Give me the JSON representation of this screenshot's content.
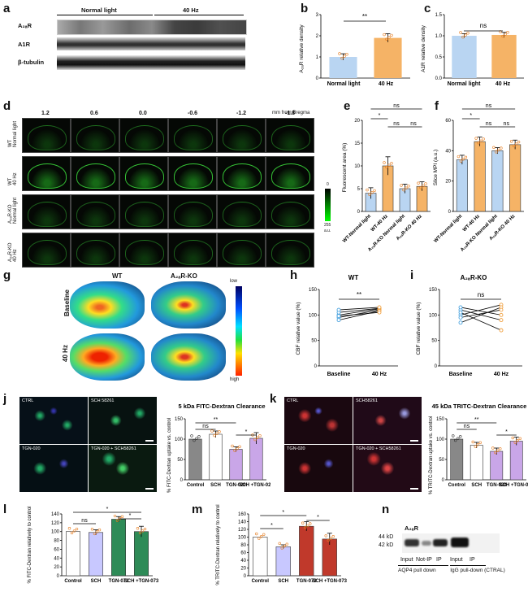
{
  "panels": {
    "a": "a",
    "b": "b",
    "c": "c",
    "d": "d",
    "e": "e",
    "f": "f",
    "g": "g",
    "h": "h",
    "i": "i",
    "j": "j",
    "k": "k",
    "l": "l",
    "m": "m",
    "n": "n"
  },
  "a": {
    "group_left": "Normal light",
    "group_right": "40 Hz",
    "rows": [
      "A₂ₐR",
      "A1R",
      "β-tubulin"
    ]
  },
  "b": {
    "ylabel": "A₂ₐR relative density",
    "sig": "**",
    "categories": [
      "Normal light",
      "40 Hz"
    ],
    "yticks": [
      "0",
      "1",
      "2",
      "3"
    ]
  },
  "c": {
    "ylabel": "A1R relative density",
    "sig": "ns",
    "categories": [
      "Normal light",
      "40 Hz"
    ],
    "yticks": [
      "0.0",
      "0.5",
      "1.0",
      "1.5"
    ]
  },
  "d": {
    "unit": "mm from Bregma",
    "columns": [
      "1.2",
      "0.6",
      "0.0",
      "-0.6",
      "-1.2",
      "-1.8"
    ],
    "rows": [
      "WT\nNormal light",
      "WT\n40 Hz",
      "A₂ₐR-KO\nNormal light",
      "A₂ₐR-KO\n40 Hz"
    ],
    "scale_top": "0",
    "scale_bottom": "255",
    "scale_unit": "a.u."
  },
  "e": {
    "ylabel": "Fluorescent area (%)",
    "yticks": [
      "0",
      "5",
      "10",
      "15",
      "20"
    ],
    "categories": [
      "WT-Normal light",
      "WT-40 Hz",
      "A₂ₐR-KO Normal light",
      "A₂ₐR-KO 40 Hz"
    ],
    "sig": [
      "ns",
      "*",
      "ns",
      "ns"
    ]
  },
  "f": {
    "ylabel": "Slice MPI (a.u.)",
    "yticks": [
      "0",
      "20",
      "40",
      "60"
    ],
    "categories": [
      "WT-Normal light",
      "WT-40 Hz",
      "A₂ₐR-KO Normal light",
      "A₂ₐR-KO 40 Hz"
    ],
    "sig": [
      "ns",
      "*",
      "ns",
      "ns"
    ]
  },
  "g": {
    "col_left": "WT",
    "col_right": "A₂ₐR-KO",
    "row_top": "Baseline",
    "row_bottom": "40 Hz",
    "scale_top": "low",
    "scale_bottom": "high"
  },
  "h": {
    "title": "WT",
    "ylabel": "CBF relative value (%)",
    "yticks": [
      "0",
      "50",
      "100",
      "150"
    ],
    "xticks": [
      "Baseline",
      "40 Hz"
    ],
    "sig": "**"
  },
  "i": {
    "title": "A₂ₐR-KO",
    "ylabel": "CBF relative value (%)",
    "yticks": [
      "0",
      "50",
      "100",
      "150"
    ],
    "xticks": [
      "Baseline",
      "40 Hz"
    ],
    "sig": "ns"
  },
  "j": {
    "image_labels": [
      "CTRL",
      "SCH 58261",
      "TGN-020",
      "TGN-020 + SCH58261"
    ],
    "title": "5 kDa FITC-Dextran Clearance",
    "ylabel": "% FITC-Dextran uptake vs. control",
    "yticks": [
      "0",
      "50",
      "100",
      "150"
    ],
    "categories": [
      "Control",
      "SCH",
      "TGN-020",
      "SCH +TGN-020"
    ],
    "sig": [
      "ns",
      "**",
      "*"
    ]
  },
  "k": {
    "image_labels": [
      "CTRL",
      "SCH58261",
      "TGN-020",
      "TGN-020 + SCH58261"
    ],
    "title": "45 kDa TRITC-Dextran Clearance",
    "ylabel": "% TRITC-Dextran uptake vs. control",
    "yticks": [
      "0",
      "50",
      "100",
      "150"
    ],
    "categories": [
      "Control",
      "SCH",
      "TGN-020",
      "SCH +TGN-020"
    ],
    "sig": [
      "ns",
      "**",
      "*"
    ]
  },
  "l": {
    "ylabel": "% FITC-Dextran relatively to control",
    "yticks": [
      "0",
      "20",
      "40",
      "60",
      "80",
      "100",
      "120",
      "140"
    ],
    "categories": [
      "Control",
      "SCH",
      "TGN-073",
      "SCH +TGN-073"
    ],
    "sig": [
      "ns",
      "*",
      "*"
    ]
  },
  "m": {
    "ylabel": "% TRITC-Dextran relatively to control",
    "yticks": [
      "0",
      "20",
      "40",
      "60",
      "80",
      "100",
      "120",
      "140",
      "160"
    ],
    "categories": [
      "Control",
      "SCH",
      "TGN-073",
      "SCH +TGN-073"
    ],
    "sig": [
      "*",
      "*",
      "*"
    ]
  },
  "n": {
    "title": "A₂ₐR",
    "mw": [
      "44 kD",
      "42 kD"
    ],
    "lanes": [
      "Input",
      "Not-IP",
      "IP",
      "Input",
      "IP"
    ],
    "group_left": "AQP4 pull down",
    "group_right": "IgG pull-down (CTRAL)"
  },
  "colors": {
    "blue": "#b9d5f2",
    "orange": "#f5b366",
    "grey": "#888888",
    "purple": "#c9a6e8",
    "green": "#2e8b57",
    "red": "#c0392b"
  },
  "chart_data": [
    {
      "type": "bar",
      "id": "b",
      "categories": [
        "Normal light",
        "40 Hz"
      ],
      "values": [
        1.0,
        1.9
      ],
      "errors": [
        0.15,
        0.2
      ],
      "ylim": [
        0,
        3
      ]
    },
    {
      "type": "bar",
      "id": "c",
      "categories": [
        "Normal light",
        "40 Hz"
      ],
      "values": [
        1.0,
        1.02
      ],
      "errors": [
        0.05,
        0.06
      ],
      "ylim": [
        0,
        1.5
      ]
    },
    {
      "type": "bar",
      "id": "e",
      "categories": [
        "WT-Normal light",
        "WT-40 Hz",
        "A₂ₐR-KO Normal light",
        "A₂ₐR-KO 40 Hz"
      ],
      "values": [
        4,
        10,
        5,
        5.5
      ],
      "errors": [
        1.2,
        2,
        1,
        1
      ],
      "ylim": [
        0,
        20
      ]
    },
    {
      "type": "bar",
      "id": "f",
      "categories": [
        "WT-Normal light",
        "WT-40 Hz",
        "A₂ₐR-KO Normal light",
        "A₂ₐR-KO 40 Hz"
      ],
      "values": [
        34,
        46,
        40,
        44
      ],
      "errors": [
        3,
        3,
        2,
        3
      ],
      "ylim": [
        0,
        60
      ]
    },
    {
      "type": "line",
      "id": "h",
      "x": [
        "Baseline",
        "40 Hz"
      ],
      "series_values": [
        [
          100,
          112
        ],
        [
          95,
          110
        ],
        [
          105,
          113
        ],
        [
          90,
          108
        ],
        [
          110,
          115
        ],
        [
          98,
          105
        ]
      ],
      "ylim": [
        0,
        150
      ]
    },
    {
      "type": "line",
      "id": "i",
      "x": [
        "Baseline",
        "40 Hz"
      ],
      "series_values": [
        [
          100,
          120
        ],
        [
          85,
          115
        ],
        [
          110,
          90
        ],
        [
          95,
          110
        ],
        [
          105,
          70
        ],
        [
          115,
          100
        ]
      ],
      "ylim": [
        0,
        150
      ]
    },
    {
      "type": "bar",
      "id": "j",
      "categories": [
        "Control",
        "SCH",
        "TGN-020",
        "SCH +TGN-020"
      ],
      "values": [
        100,
        112,
        75,
        102
      ],
      "errors": [
        0,
        8,
        6,
        14
      ],
      "ylim": [
        0,
        150
      ]
    },
    {
      "type": "bar",
      "id": "k",
      "categories": [
        "Control",
        "SCH",
        "TGN-020",
        "SCH +TGN-020"
      ],
      "values": [
        100,
        85,
        70,
        95
      ],
      "errors": [
        0,
        7,
        8,
        10
      ],
      "ylim": [
        0,
        150
      ]
    },
    {
      "type": "bar",
      "id": "l",
      "categories": [
        "Control",
        "SCH",
        "TGN-073",
        "SCH +TGN-073"
      ],
      "values": [
        100,
        98,
        128,
        100
      ],
      "errors": [
        0,
        6,
        6,
        12
      ],
      "ylim": [
        0,
        140
      ]
    },
    {
      "type": "bar",
      "id": "m",
      "categories": [
        "Control",
        "SCH",
        "TGN-073",
        "SCH +TGN-073"
      ],
      "values": [
        100,
        75,
        128,
        95
      ],
      "errors": [
        0,
        5,
        12,
        15
      ],
      "ylim": [
        0,
        160
      ]
    }
  ]
}
